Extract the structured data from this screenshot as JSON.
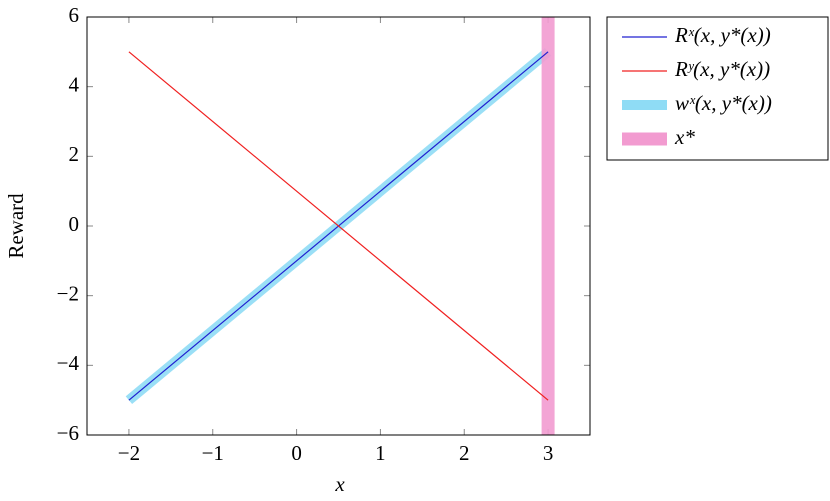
{
  "chart_data": {
    "type": "line",
    "xlabel": "x",
    "ylabel": "Reward",
    "xlim": [
      -2.5,
      3.5
    ],
    "ylim": [
      -6,
      6
    ],
    "xticks": [
      {
        "value": -2,
        "label": "−2"
      },
      {
        "value": -1,
        "label": "−1"
      },
      0,
      1,
      2,
      3
    ],
    "yticks": [
      {
        "value": -6,
        "label": "−6"
      },
      {
        "value": -4,
        "label": "−4"
      },
      {
        "value": -2,
        "label": "−2"
      },
      0,
      2,
      4,
      6
    ],
    "legend": "outside-top-right",
    "series": [
      {
        "name": "wˣ(x, y*(x))",
        "color": "#8fdcf5",
        "width": 10,
        "x": [
          -2,
          3
        ],
        "values": [
          -5,
          5
        ]
      },
      {
        "name": "x*",
        "color": "#f29bd0",
        "width": 13,
        "x": [
          3,
          3
        ],
        "values": [
          -6,
          6
        ]
      },
      {
        "name": "Rˣ(x, y*(x))",
        "color": "#2020d0",
        "width": 1.2,
        "x": [
          -2,
          3
        ],
        "values": [
          -5,
          5
        ]
      },
      {
        "name": "Rʸ(x, y*(x))",
        "color": "#f02020",
        "width": 1.2,
        "x": [
          -2,
          3
        ],
        "values": [
          5,
          -5
        ]
      }
    ],
    "legend_order": [
      2,
      3,
      0,
      1
    ]
  }
}
